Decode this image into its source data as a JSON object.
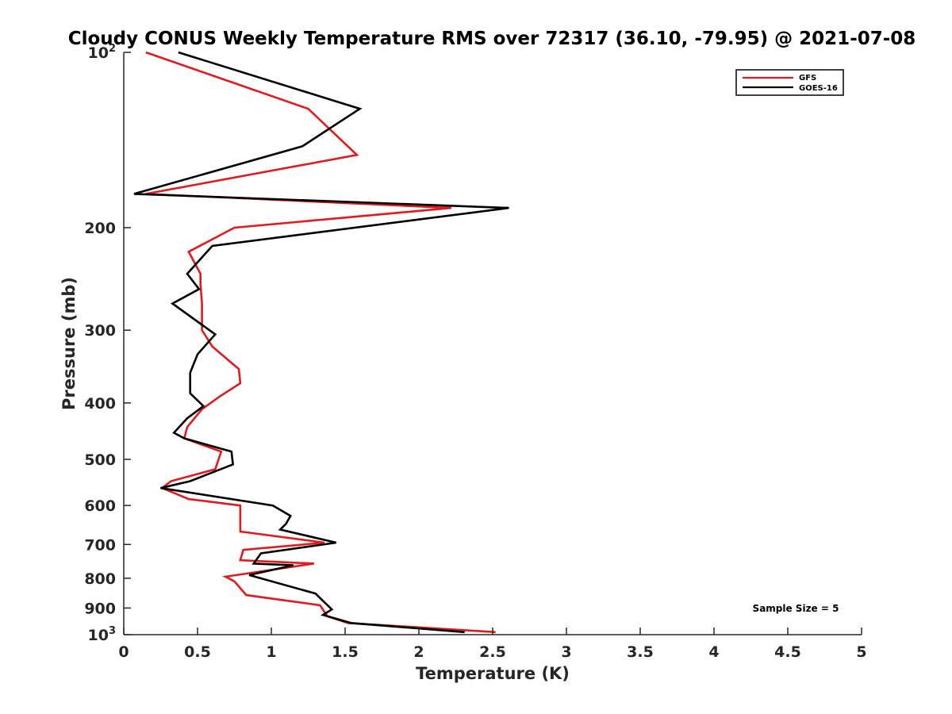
{
  "chart_data": {
    "type": "line",
    "title": "Cloudy CONUS Weekly Temperature RMS over 72317 (36.10, -79.95) @ 2021-07-08",
    "xlabel": "Temperature (K)",
    "ylabel": "Pressure (mb)",
    "xlim": [
      0,
      5
    ],
    "ylim": [
      100,
      1000
    ],
    "y_scale": "log",
    "y_reversed": true,
    "x_ticks": [
      "0",
      "0.5",
      "1",
      "1.5",
      "2",
      "2.5",
      "3",
      "3.5",
      "4",
      "4.5",
      "5"
    ],
    "x_tick_values": [
      0,
      0.5,
      1,
      1.5,
      2,
      2.5,
      3,
      3.5,
      4,
      4.5,
      5
    ],
    "y_ticks": [
      {
        "value": 100,
        "base": "10",
        "exp": "2"
      },
      {
        "value": 200,
        "label": "200"
      },
      {
        "value": 300,
        "label": "300"
      },
      {
        "value": 400,
        "label": "400"
      },
      {
        "value": 500,
        "label": "500"
      },
      {
        "value": 600,
        "label": "600"
      },
      {
        "value": 700,
        "label": "700"
      },
      {
        "value": 800,
        "label": "800"
      },
      {
        "value": 900,
        "label": "900"
      },
      {
        "value": 1000,
        "base": "10",
        "exp": "3"
      }
    ],
    "grid": false,
    "legend_position": "top-right",
    "annotation": "Sample Size = 5",
    "series": [
      {
        "name": "GFS",
        "color": "#e31a1c",
        "points": [
          [
            0.15,
            100
          ],
          [
            1.25,
            125
          ],
          [
            1.58,
            150
          ],
          [
            0.15,
            175
          ],
          [
            2.22,
            185
          ],
          [
            0.75,
            200
          ],
          [
            0.44,
            220
          ],
          [
            0.52,
            240
          ],
          [
            0.52,
            250
          ],
          [
            0.53,
            270
          ],
          [
            0.53,
            300
          ],
          [
            0.6,
            320
          ],
          [
            0.78,
            350
          ],
          [
            0.79,
            370
          ],
          [
            0.65,
            390
          ],
          [
            0.53,
            410
          ],
          [
            0.43,
            440
          ],
          [
            0.41,
            460
          ],
          [
            0.66,
            485
          ],
          [
            0.62,
            520
          ],
          [
            0.32,
            545
          ],
          [
            0.26,
            560
          ],
          [
            0.44,
            585
          ],
          [
            0.79,
            600
          ],
          [
            0.79,
            665
          ],
          [
            1.36,
            695
          ],
          [
            0.81,
            715
          ],
          [
            0.79,
            745
          ],
          [
            1.29,
            755
          ],
          [
            0.69,
            795
          ],
          [
            0.75,
            810
          ],
          [
            0.83,
            855
          ],
          [
            1.33,
            890
          ],
          [
            1.38,
            930
          ],
          [
            1.52,
            955
          ],
          [
            2.52,
            990
          ]
        ]
      },
      {
        "name": "GOES-16",
        "color": "#000000",
        "points": [
          [
            0.37,
            100
          ],
          [
            1.6,
            125
          ],
          [
            1.21,
            145
          ],
          [
            0.07,
            175
          ],
          [
            2.61,
            185
          ],
          [
            0.6,
            215
          ],
          [
            0.43,
            240
          ],
          [
            0.51,
            255
          ],
          [
            0.33,
            270
          ],
          [
            0.62,
            305
          ],
          [
            0.5,
            330
          ],
          [
            0.45,
            355
          ],
          [
            0.45,
            385
          ],
          [
            0.54,
            405
          ],
          [
            0.43,
            425
          ],
          [
            0.34,
            450
          ],
          [
            0.41,
            460
          ],
          [
            0.73,
            485
          ],
          [
            0.74,
            510
          ],
          [
            0.45,
            545
          ],
          [
            0.25,
            560
          ],
          [
            1.01,
            600
          ],
          [
            1.13,
            625
          ],
          [
            1.1,
            645
          ],
          [
            1.06,
            660
          ],
          [
            1.44,
            695
          ],
          [
            0.93,
            725
          ],
          [
            0.88,
            755
          ],
          [
            1.15,
            760
          ],
          [
            0.85,
            790
          ],
          [
            1.3,
            850
          ],
          [
            1.33,
            865
          ],
          [
            1.41,
            905
          ],
          [
            1.35,
            925
          ],
          [
            1.54,
            955
          ],
          [
            2.31,
            990
          ]
        ]
      }
    ]
  }
}
